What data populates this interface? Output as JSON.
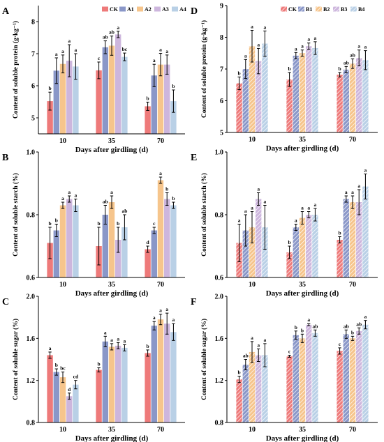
{
  "colors": {
    "CK": "#ee7a7a",
    "S1": "#8a97c8",
    "S2": "#f6c58c",
    "S3": "#cdb6dd",
    "S4": "#b9d0e6"
  },
  "chart_data": [
    {
      "panel": "A",
      "type": "bar",
      "hatched": false,
      "categories": [
        "10",
        "35",
        "70"
      ],
      "series": [
        {
          "name": "CK",
          "values": [
            5.52,
            6.48,
            5.36
          ],
          "err": [
            0.28,
            0.26,
            0.13
          ],
          "sig": [
            "b",
            "c",
            "b"
          ]
        },
        {
          "name": "A1",
          "values": [
            6.47,
            7.2,
            6.32
          ],
          "err": [
            0.4,
            0.2,
            0.35
          ],
          "sig": [
            "a",
            "ab",
            "a"
          ]
        },
        {
          "name": "A2",
          "values": [
            6.68,
            7.25,
            6.66
          ],
          "err": [
            0.28,
            0.3,
            0.35
          ],
          "sig": [
            "a",
            "ab",
            "a"
          ]
        },
        {
          "name": "A3",
          "values": [
            6.78,
            7.6,
            6.66
          ],
          "err": [
            0.5,
            0.1,
            0.3
          ],
          "sig": [
            "a",
            "a",
            "a"
          ]
        },
        {
          "name": "A4",
          "values": [
            6.6,
            6.9,
            5.52
          ],
          "err": [
            0.4,
            0.12,
            0.35
          ],
          "sig": [
            "a",
            "bc",
            "b"
          ]
        }
      ],
      "ylabel": "Content of soluble protein (g·kg⁻¹)",
      "xlabel": "Days after girdling (d)",
      "ylim": [
        4.5,
        8.5
      ],
      "yticks": [
        5,
        6,
        7,
        8
      ],
      "legend": "top-right"
    },
    {
      "panel": "B",
      "type": "bar",
      "hatched": false,
      "categories": [
        "10",
        "35",
        "70"
      ],
      "series": [
        {
          "name": "CK",
          "values": [
            0.71,
            0.7,
            0.69
          ],
          "err": [
            0.05,
            0.06,
            0.01
          ],
          "sig": [
            "b",
            "b",
            "d"
          ]
        },
        {
          "name": "A1",
          "values": [
            0.75,
            0.8,
            0.75
          ],
          "err": [
            0.02,
            0.03,
            0.01
          ],
          "sig": [
            "b",
            "ab",
            "c"
          ]
        },
        {
          "name": "A2",
          "values": [
            0.83,
            0.84,
            0.91
          ],
          "err": [
            0.01,
            0.02,
            0.01
          ],
          "sig": [
            "a",
            "a",
            "a"
          ]
        },
        {
          "name": "A3",
          "values": [
            0.85,
            0.72,
            0.85
          ],
          "err": [
            0.01,
            0.04,
            0.02
          ],
          "sig": [
            "a",
            "b",
            "b"
          ]
        },
        {
          "name": "A4",
          "values": [
            0.83,
            0.76,
            0.83
          ],
          "err": [
            0.02,
            0.04,
            0.01
          ],
          "sig": [
            "a",
            "ab",
            "b"
          ]
        }
      ],
      "ylabel": "Content of soluble starch (%)",
      "xlabel": "Days after girdling (d)",
      "ylim": [
        0.6,
        1.0
      ],
      "yticks": [
        0.6,
        0.8,
        1.0
      ]
    },
    {
      "panel": "C",
      "type": "bar",
      "hatched": false,
      "categories": [
        "10",
        "35",
        "70"
      ],
      "series": [
        {
          "name": "CK",
          "values": [
            1.44,
            1.3,
            1.46
          ],
          "err": [
            0.03,
            0.02,
            0.03
          ],
          "sig": [
            "a",
            "b",
            "b"
          ]
        },
        {
          "name": "A1",
          "values": [
            1.28,
            1.57,
            1.72
          ],
          "err": [
            0.03,
            0.05,
            0.04
          ],
          "sig": [
            "b",
            "a",
            "a"
          ]
        },
        {
          "name": "A2",
          "values": [
            1.23,
            1.52,
            1.78
          ],
          "err": [
            0.05,
            0.03,
            0.05
          ],
          "sig": [
            "bc",
            "a",
            "a"
          ]
        },
        {
          "name": "A3",
          "values": [
            1.05,
            1.53,
            1.74
          ],
          "err": [
            0.03,
            0.03,
            0.1
          ],
          "sig": [
            "d",
            "a",
            "a"
          ]
        },
        {
          "name": "A4",
          "values": [
            1.16,
            1.51,
            1.66
          ],
          "err": [
            0.04,
            0.03,
            0.08
          ],
          "sig": [
            "cd",
            "a",
            "a"
          ]
        }
      ],
      "ylabel": "Content of soluble sugar (%)",
      "xlabel": "Days after girdling (d)",
      "ylim": [
        0.8,
        2.0
      ],
      "yticks": [
        0.8,
        1.2,
        1.6,
        2.0
      ]
    },
    {
      "panel": "D",
      "type": "bar",
      "hatched": true,
      "categories": [
        "10",
        "35",
        "70"
      ],
      "series": [
        {
          "name": "CK",
          "values": [
            6.55,
            6.67,
            6.82
          ],
          "err": [
            0.2,
            0.22,
            0.07
          ],
          "sig": [
            "b",
            "b",
            "b"
          ]
        },
        {
          "name": "B1",
          "values": [
            7.0,
            7.42,
            6.98
          ],
          "err": [
            0.3,
            0.1,
            0.1
          ],
          "sig": [
            "a",
            "a",
            "ab"
          ]
        },
        {
          "name": "B2",
          "values": [
            7.72,
            7.5,
            7.17
          ],
          "err": [
            0.5,
            0.1,
            0.15
          ],
          "sig": [
            "a",
            "a",
            "ab"
          ]
        },
        {
          "name": "B3",
          "values": [
            7.25,
            7.72,
            7.35
          ],
          "err": [
            0.4,
            0.1,
            0.25
          ],
          "sig": [
            "a",
            "a",
            "a"
          ]
        },
        {
          "name": "B4",
          "values": [
            7.8,
            7.66,
            7.28
          ],
          "err": [
            0.4,
            0.2,
            0.3
          ],
          "sig": [
            "a",
            "a",
            "a"
          ]
        }
      ],
      "ylabel": "Content of soluble protein (g·kg⁻¹)",
      "xlabel": "Days after girdling (d)",
      "ylim": [
        5,
        9
      ],
      "yticks": [
        5,
        6,
        7,
        8,
        9
      ],
      "legend": "top-right"
    },
    {
      "panel": "E",
      "type": "bar",
      "hatched": true,
      "categories": [
        "10",
        "35",
        "70"
      ],
      "series": [
        {
          "name": "CK",
          "values": [
            0.71,
            0.68,
            0.72
          ],
          "err": [
            0.06,
            0.02,
            0.01
          ],
          "sig": [
            "a",
            "b",
            "b"
          ]
        },
        {
          "name": "B1",
          "values": [
            0.75,
            0.76,
            0.85
          ],
          "err": [
            0.05,
            0.01,
            0.01
          ],
          "sig": [
            "a",
            "a",
            "a"
          ]
        },
        {
          "name": "B2",
          "values": [
            0.76,
            0.79,
            0.84
          ],
          "err": [
            0.05,
            0.02,
            0.02
          ],
          "sig": [
            "a",
            "a",
            "a"
          ]
        },
        {
          "name": "B3",
          "values": [
            0.85,
            0.8,
            0.84
          ],
          "err": [
            0.02,
            0.01,
            0.04
          ],
          "sig": [
            "a",
            "a",
            "a"
          ]
        },
        {
          "name": "B4",
          "values": [
            0.76,
            0.8,
            0.89
          ],
          "err": [
            0.07,
            0.02,
            0.04
          ],
          "sig": [
            "a",
            "a",
            "a"
          ]
        }
      ],
      "ylabel": "Content of soluble starch (%)",
      "xlabel": "Days after girdling (d)",
      "ylim": [
        0.6,
        1.0
      ],
      "yticks": [
        0.6,
        0.8,
        1.0
      ]
    },
    {
      "panel": "F",
      "type": "bar",
      "hatched": true,
      "categories": [
        "10",
        "35",
        "70"
      ],
      "series": [
        {
          "name": "CK",
          "values": [
            1.21,
            1.43,
            1.48
          ],
          "err": [
            0.03,
            0.01,
            0.03
          ],
          "sig": [
            "b",
            "c",
            "c"
          ]
        },
        {
          "name": "B1",
          "values": [
            1.35,
            1.63,
            1.64
          ],
          "err": [
            0.05,
            0.04,
            0.04
          ],
          "sig": [
            "ab",
            "b",
            "ab"
          ]
        },
        {
          "name": "B2",
          "values": [
            1.47,
            1.6,
            1.6
          ],
          "err": [
            0.1,
            0.04,
            0.02
          ],
          "sig": [
            "a",
            "b",
            "b"
          ]
        },
        {
          "name": "B3",
          "values": [
            1.44,
            1.73,
            1.67
          ],
          "err": [
            0.06,
            0.01,
            0.03
          ],
          "sig": [
            "a",
            "a",
            "ab"
          ]
        },
        {
          "name": "B4",
          "values": [
            1.44,
            1.65,
            1.73
          ],
          "err": [
            0.11,
            0.03,
            0.04
          ],
          "sig": [
            "a",
            "ab",
            "a"
          ]
        }
      ],
      "ylabel": "Content of soluble sugar (%)",
      "xlabel": "Days after girdling (d)",
      "ylim": [
        0.8,
        2.0
      ],
      "yticks": [
        0.8,
        1.2,
        1.6,
        2.0
      ]
    }
  ]
}
